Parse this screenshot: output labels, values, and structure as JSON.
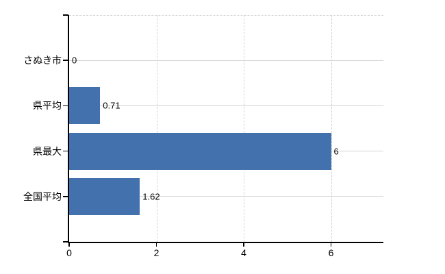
{
  "chart_data": {
    "type": "bar",
    "orientation": "horizontal",
    "title": "",
    "xlabel": "",
    "ylabel": "",
    "categories": [
      "さぬき市",
      "県平均",
      "県最大",
      "全国平均"
    ],
    "values": [
      0,
      0.71,
      6,
      1.62
    ],
    "value_labels": [
      "0",
      "0.71",
      "6",
      "1.62"
    ],
    "xlim": [
      0,
      7.2
    ],
    "x_ticks": [
      0,
      2,
      4,
      6
    ],
    "x_tick_labels": [
      "0",
      "2",
      "4",
      "6"
    ],
    "grid": true,
    "legend": false,
    "colors": {
      "bar": "#4271AE",
      "gridline": "#D3D3D3",
      "axis": "#000000",
      "label": "#000000",
      "background": "#FFFFFF"
    }
  }
}
